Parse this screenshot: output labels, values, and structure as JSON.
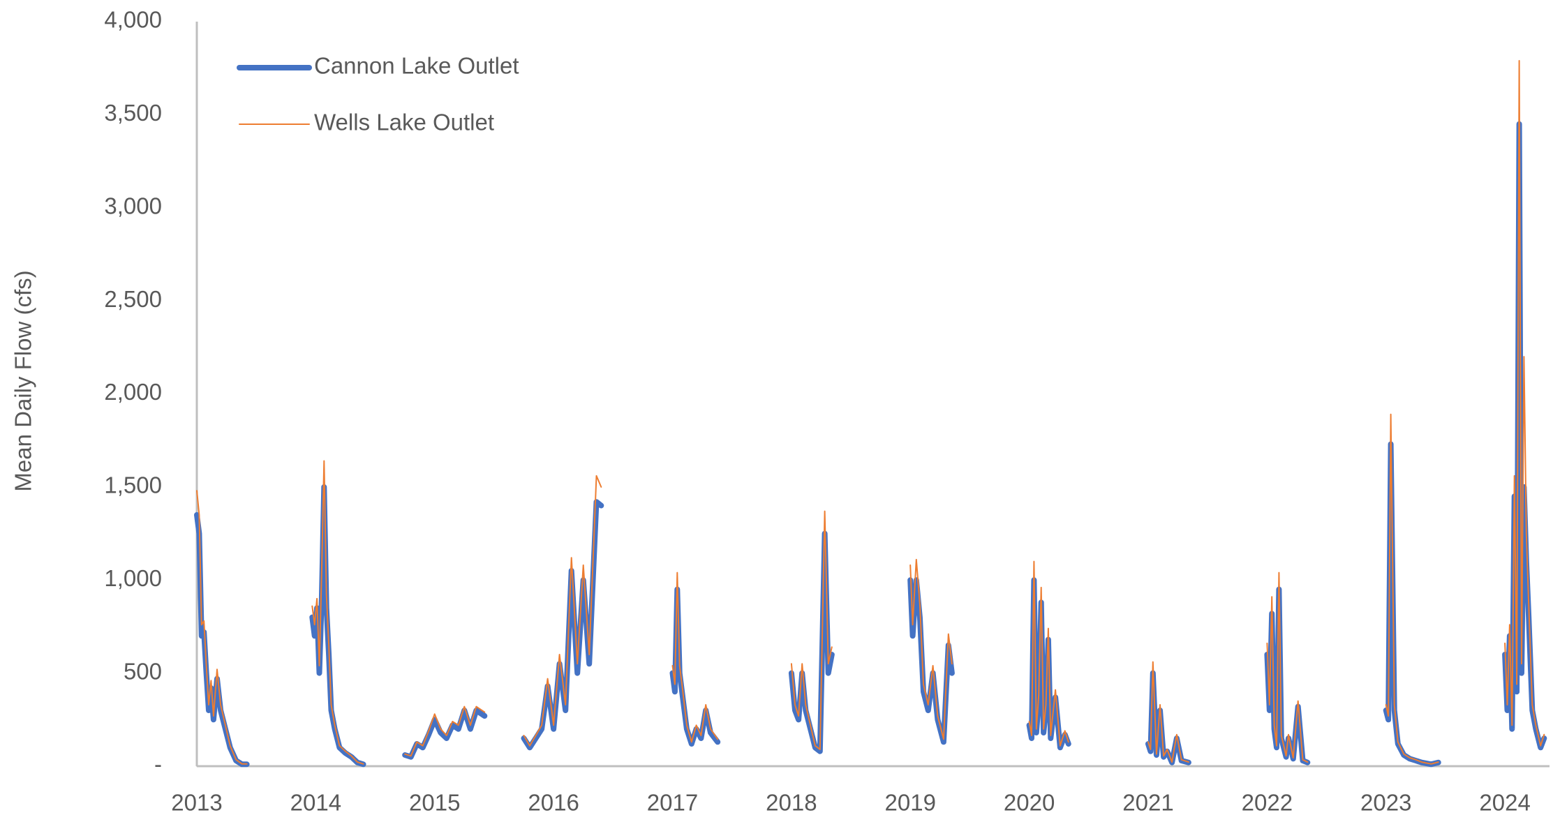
{
  "chart_data": {
    "type": "line",
    "y_label": "Mean Daily Flow (cfs)",
    "legend": "top-left",
    "xlim": [
      2013,
      2024.375
    ],
    "xticks": [
      2013,
      2014,
      2015,
      2016,
      2017,
      2018,
      2019,
      2020,
      2021,
      2022,
      2023,
      2024
    ],
    "ylim": [
      0,
      4000
    ],
    "yticks": [
      {
        "value": 0,
        "label": "-"
      },
      500,
      {
        "value": 1000,
        "label": "1,000"
      },
      {
        "value": 1500,
        "label": "1,500"
      },
      {
        "value": 2000,
        "label": "2,000"
      },
      {
        "value": 2500,
        "label": "2,500"
      },
      {
        "value": 3000,
        "label": "3,000"
      },
      {
        "value": 3500,
        "label": "3,500"
      },
      {
        "value": 4000,
        "label": "4,000"
      }
    ],
    "x": [
      2013.0,
      2013.02,
      2013.04,
      2013.06,
      2013.08,
      2013.1,
      2013.12,
      2013.14,
      2013.17,
      2013.2,
      2013.24,
      2013.28,
      2013.33,
      2013.38,
      2013.42,
      2013.7,
      2013.97,
      2013.99,
      2014.01,
      2014.03,
      2014.05,
      2014.07,
      2014.09,
      2014.11,
      2014.13,
      2014.16,
      2014.2,
      2014.25,
      2014.3,
      2014.35,
      2014.4,
      2014.6,
      2014.75,
      2014.8,
      2014.85,
      2014.9,
      2014.95,
      2015.0,
      2015.05,
      2015.1,
      2015.15,
      2015.2,
      2015.25,
      2015.3,
      2015.35,
      2015.42,
      2015.6,
      2015.75,
      2015.8,
      2015.85,
      2015.9,
      2015.95,
      2016.0,
      2016.05,
      2016.1,
      2016.15,
      2016.2,
      2016.25,
      2016.3,
      2016.36,
      2016.4,
      2016.7,
      2017.0,
      2017.02,
      2017.04,
      2017.06,
      2017.08,
      2017.12,
      2017.16,
      2017.2,
      2017.24,
      2017.28,
      2017.32,
      2017.38,
      2017.7,
      2018.0,
      2018.03,
      2018.06,
      2018.09,
      2018.12,
      2018.16,
      2018.2,
      2018.24,
      2018.28,
      2018.31,
      2018.34,
      2018.7,
      2019.0,
      2019.02,
      2019.05,
      2019.08,
      2019.11,
      2019.15,
      2019.19,
      2019.23,
      2019.28,
      2019.32,
      2019.35,
      2019.7,
      2020.0,
      2020.02,
      2020.04,
      2020.06,
      2020.08,
      2020.1,
      2020.12,
      2020.14,
      2020.16,
      2020.18,
      2020.22,
      2020.26,
      2020.3,
      2020.33,
      2020.7,
      2021.0,
      2021.02,
      2021.04,
      2021.07,
      2021.1,
      2021.13,
      2021.16,
      2021.2,
      2021.24,
      2021.28,
      2021.34,
      2021.7,
      2022.0,
      2022.02,
      2022.04,
      2022.06,
      2022.08,
      2022.1,
      2022.12,
      2022.16,
      2022.18,
      2022.22,
      2022.26,
      2022.3,
      2022.34,
      2022.7,
      2023.0,
      2023.02,
      2023.04,
      2023.07,
      2023.1,
      2023.15,
      2023.2,
      2023.25,
      2023.3,
      2023.38,
      2023.44,
      2023.7,
      2024.0,
      2024.02,
      2024.04,
      2024.06,
      2024.08,
      2024.1,
      2024.12,
      2024.14,
      2024.16,
      2024.18,
      2024.2,
      2024.23,
      2024.26,
      2024.3,
      2024.33
    ],
    "series": [
      {
        "name": "Cannon Lake Outlet",
        "color": "#4472c4",
        "values": [
          1350,
          1250,
          700,
          720,
          500,
          300,
          420,
          250,
          470,
          300,
          200,
          100,
          30,
          10,
          10,
          null,
          800,
          700,
          850,
          500,
          900,
          1500,
          850,
          600,
          300,
          200,
          100,
          70,
          50,
          20,
          10,
          null,
          60,
          50,
          120,
          100,
          170,
          250,
          180,
          150,
          220,
          200,
          300,
          200,
          300,
          270,
          null,
          150,
          100,
          150,
          200,
          430,
          200,
          550,
          300,
          1050,
          500,
          1000,
          550,
          1420,
          1400,
          null,
          500,
          400,
          950,
          500,
          400,
          200,
          120,
          200,
          150,
          300,
          180,
          130,
          null,
          500,
          300,
          250,
          500,
          300,
          200,
          100,
          80,
          1250,
          500,
          600,
          null,
          1000,
          700,
          1000,
          800,
          400,
          300,
          500,
          250,
          130,
          650,
          500,
          null,
          220,
          150,
          1000,
          180,
          350,
          880,
          180,
          300,
          680,
          150,
          370,
          100,
          170,
          120,
          null,
          120,
          80,
          500,
          60,
          300,
          50,
          80,
          20,
          150,
          30,
          20,
          null,
          600,
          300,
          820,
          200,
          100,
          950,
          150,
          50,
          150,
          40,
          320,
          30,
          20,
          null,
          300,
          250,
          1730,
          300,
          120,
          60,
          40,
          30,
          20,
          10,
          20,
          null,
          600,
          300,
          700,
          200,
          1450,
          400,
          3450,
          500,
          1500,
          1100,
          800,
          300,
          200,
          100,
          150
        ]
      },
      {
        "name": "Wells Lake Outlet",
        "color": "#ed7d31",
        "values": [
          1480,
          1350,
          760,
          780,
          540,
          330,
          460,
          270,
          520,
          330,
          220,
          110,
          35,
          12,
          12,
          null,
          860,
          760,
          900,
          540,
          1050,
          1640,
          920,
          650,
          330,
          220,
          110,
          80,
          55,
          22,
          12,
          null,
          65,
          55,
          130,
          110,
          190,
          280,
          200,
          165,
          240,
          220,
          320,
          220,
          320,
          290,
          null,
          165,
          110,
          165,
          220,
          470,
          220,
          600,
          330,
          1120,
          550,
          1080,
          600,
          1560,
          1500,
          null,
          540,
          440,
          1040,
          540,
          440,
          220,
          130,
          220,
          165,
          330,
          200,
          145,
          null,
          550,
          330,
          270,
          550,
          330,
          220,
          110,
          90,
          1370,
          550,
          640,
          null,
          1080,
          760,
          1110,
          870,
          440,
          330,
          540,
          270,
          145,
          710,
          550,
          null,
          240,
          165,
          1100,
          200,
          380,
          960,
          200,
          330,
          740,
          165,
          410,
          110,
          190,
          130,
          null,
          130,
          90,
          560,
          65,
          330,
          55,
          90,
          22,
          170,
          35,
          22,
          null,
          660,
          330,
          910,
          220,
          110,
          1040,
          165,
          55,
          170,
          45,
          350,
          35,
          22,
          null,
          330,
          270,
          1890,
          330,
          130,
          65,
          45,
          35,
          22,
          12,
          22,
          null,
          660,
          330,
          760,
          220,
          1560,
          440,
          3790,
          550,
          2200,
          1250,
          870,
          330,
          220,
          110,
          170
        ]
      }
    ]
  }
}
